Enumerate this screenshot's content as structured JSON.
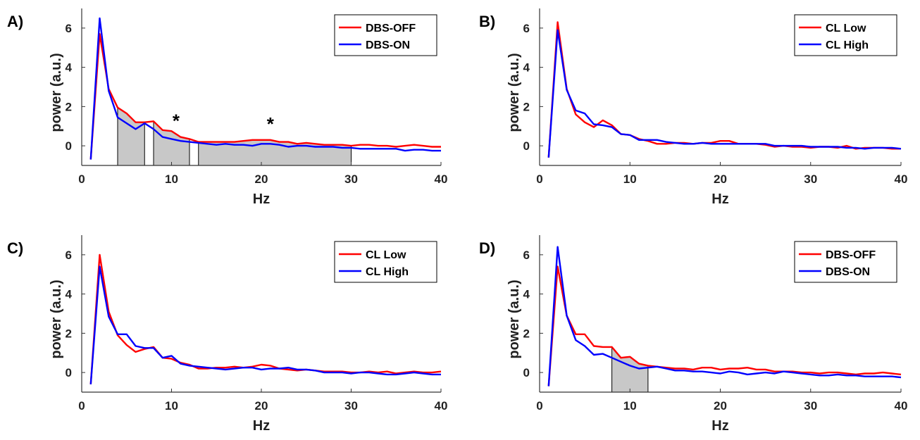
{
  "chart_data": [
    {
      "type": "line",
      "panel_label": "A)",
      "xlabel": "Hz",
      "ylabel": "power (a.u.)",
      "xlim": [
        0,
        40
      ],
      "ylim": [
        -1,
        7
      ],
      "xticks": [
        "0",
        "10",
        "20",
        "30",
        "40"
      ],
      "yticks": [
        "0",
        "2",
        "4",
        "6"
      ],
      "grid": false,
      "legend_position": "top-right",
      "x": [
        1,
        2,
        3,
        4,
        5,
        6,
        7,
        8,
        9,
        10,
        11,
        12,
        13,
        14,
        15,
        16,
        17,
        18,
        19,
        20,
        21,
        22,
        23,
        24,
        25,
        26,
        27,
        28,
        29,
        30,
        31,
        32,
        33,
        34,
        35,
        36,
        37,
        38,
        39,
        40
      ],
      "series": [
        {
          "name": "DBS-OFF",
          "color": "#ff0000",
          "values": [
            -0.7,
            5.7,
            2.9,
            1.95,
            1.65,
            1.2,
            1.2,
            1.25,
            0.8,
            0.75,
            0.45,
            0.35,
            0.2,
            0.2,
            0.2,
            0.2,
            0.2,
            0.25,
            0.3,
            0.3,
            0.3,
            0.2,
            0.2,
            0.1,
            0.15,
            0.1,
            0.05,
            0.05,
            0.05,
            0.0,
            0.05,
            0.05,
            0.0,
            0.0,
            -0.05,
            0.0,
            0.05,
            0.0,
            -0.05,
            -0.05
          ]
        },
        {
          "name": "DBS-ON",
          "color": "#0000ff",
          "values": [
            -0.7,
            6.5,
            2.8,
            1.45,
            1.15,
            0.85,
            1.15,
            0.85,
            0.45,
            0.35,
            0.25,
            0.2,
            0.15,
            0.1,
            0.05,
            0.1,
            0.05,
            0.05,
            0.0,
            0.1,
            0.1,
            0.05,
            -0.05,
            0.0,
            0.0,
            -0.05,
            -0.05,
            -0.05,
            -0.1,
            -0.1,
            -0.15,
            -0.15,
            -0.15,
            -0.15,
            -0.15,
            -0.25,
            -0.2,
            -0.2,
            -0.25,
            -0.25
          ]
        }
      ],
      "shaded_ranges": [
        [
          4,
          7
        ],
        [
          8,
          12
        ],
        [
          13,
          30
        ]
      ],
      "annotations": [
        {
          "text": "*",
          "x": 10.5
        },
        {
          "text": "*",
          "x": 21
        }
      ]
    },
    {
      "type": "line",
      "panel_label": "B)",
      "xlabel": "Hz",
      "ylabel": "power (a.u.)",
      "xlim": [
        0,
        40
      ],
      "ylim": [
        -1,
        7
      ],
      "xticks": [
        "0",
        "10",
        "20",
        "30",
        "40"
      ],
      "yticks": [
        "0",
        "2",
        "4",
        "6"
      ],
      "grid": false,
      "legend_position": "top-right",
      "x": [
        1,
        2,
        3,
        4,
        5,
        6,
        7,
        8,
        9,
        10,
        11,
        12,
        13,
        14,
        15,
        16,
        17,
        18,
        19,
        20,
        21,
        22,
        23,
        24,
        25,
        26,
        27,
        28,
        29,
        30,
        31,
        32,
        33,
        34,
        35,
        36,
        37,
        38,
        39,
        40
      ],
      "series": [
        {
          "name": "CL Low",
          "color": "#ff0000",
          "values": [
            -0.6,
            6.3,
            2.9,
            1.6,
            1.2,
            0.95,
            1.3,
            1.05,
            0.6,
            0.55,
            0.35,
            0.25,
            0.1,
            0.1,
            0.15,
            0.15,
            0.1,
            0.15,
            0.15,
            0.25,
            0.25,
            0.1,
            0.1,
            0.1,
            0.05,
            -0.05,
            0.0,
            -0.05,
            -0.05,
            -0.1,
            -0.05,
            -0.05,
            -0.1,
            0.0,
            -0.15,
            -0.1,
            -0.1,
            -0.1,
            -0.15,
            -0.15
          ]
        },
        {
          "name": "CL High",
          "color": "#0000ff",
          "values": [
            -0.6,
            5.9,
            2.85,
            1.8,
            1.65,
            1.1,
            1.05,
            0.95,
            0.6,
            0.55,
            0.3,
            0.3,
            0.3,
            0.2,
            0.15,
            0.1,
            0.1,
            0.15,
            0.1,
            0.1,
            0.1,
            0.1,
            0.1,
            0.1,
            0.1,
            0.0,
            0.0,
            0.0,
            0.0,
            -0.05,
            -0.05,
            -0.05,
            -0.05,
            -0.1,
            -0.1,
            -0.15,
            -0.1,
            -0.1,
            -0.1,
            -0.15
          ]
        }
      ],
      "shaded_ranges": [],
      "annotations": []
    },
    {
      "type": "line",
      "panel_label": "C)",
      "xlabel": "Hz",
      "ylabel": "power (a.u.)",
      "xlim": [
        0,
        40
      ],
      "ylim": [
        -1,
        7
      ],
      "xticks": [
        "0",
        "10",
        "20",
        "30",
        "40"
      ],
      "yticks": [
        "0",
        "2",
        "4",
        "6"
      ],
      "grid": false,
      "legend_position": "top-right",
      "x": [
        1,
        2,
        3,
        4,
        5,
        6,
        7,
        8,
        9,
        10,
        11,
        12,
        13,
        14,
        15,
        16,
        17,
        18,
        19,
        20,
        21,
        22,
        23,
        24,
        25,
        26,
        27,
        28,
        29,
        30,
        31,
        32,
        33,
        34,
        35,
        36,
        37,
        38,
        39,
        40
      ],
      "series": [
        {
          "name": "CL Low",
          "color": "#ff0000",
          "values": [
            -0.6,
            6.0,
            3.1,
            1.9,
            1.4,
            1.05,
            1.2,
            1.3,
            0.75,
            0.7,
            0.5,
            0.4,
            0.2,
            0.2,
            0.25,
            0.25,
            0.3,
            0.25,
            0.3,
            0.4,
            0.35,
            0.2,
            0.15,
            0.1,
            0.15,
            0.1,
            0.05,
            0.05,
            0.05,
            0.0,
            0.0,
            0.05,
            0.0,
            0.05,
            -0.05,
            0.0,
            0.05,
            0.0,
            0.0,
            0.05
          ]
        },
        {
          "name": "CL High",
          "color": "#0000ff",
          "values": [
            -0.6,
            5.4,
            2.85,
            1.95,
            1.95,
            1.35,
            1.25,
            1.25,
            0.75,
            0.85,
            0.45,
            0.35,
            0.3,
            0.25,
            0.2,
            0.15,
            0.2,
            0.25,
            0.25,
            0.15,
            0.2,
            0.2,
            0.25,
            0.15,
            0.15,
            0.1,
            0.0,
            0.0,
            0.0,
            -0.05,
            0.0,
            0.0,
            -0.05,
            -0.1,
            -0.1,
            -0.05,
            0.0,
            -0.05,
            -0.1,
            -0.1
          ]
        }
      ],
      "shaded_ranges": [],
      "annotations": []
    },
    {
      "type": "line",
      "panel_label": "D)",
      "xlabel": "Hz",
      "ylabel": "power (a.u.)",
      "xlim": [
        0,
        40
      ],
      "ylim": [
        -1,
        7
      ],
      "xticks": [
        "0",
        "10",
        "20",
        "30",
        "40"
      ],
      "yticks": [
        "0",
        "2",
        "4",
        "6"
      ],
      "grid": false,
      "legend_position": "top-right",
      "x": [
        1,
        2,
        3,
        4,
        5,
        6,
        7,
        8,
        9,
        10,
        11,
        12,
        13,
        14,
        15,
        16,
        17,
        18,
        19,
        20,
        21,
        22,
        23,
        24,
        25,
        26,
        27,
        28,
        29,
        30,
        31,
        32,
        33,
        34,
        35,
        36,
        37,
        38,
        39,
        40
      ],
      "series": [
        {
          "name": "DBS-OFF",
          "color": "#ff0000",
          "values": [
            -0.7,
            5.4,
            2.9,
            1.95,
            1.95,
            1.35,
            1.3,
            1.3,
            0.75,
            0.8,
            0.45,
            0.35,
            0.3,
            0.25,
            0.2,
            0.2,
            0.15,
            0.25,
            0.25,
            0.15,
            0.2,
            0.2,
            0.25,
            0.15,
            0.15,
            0.05,
            0.05,
            0.05,
            0.0,
            0.0,
            -0.05,
            0.0,
            0.0,
            -0.05,
            -0.1,
            -0.05,
            -0.05,
            0.0,
            -0.05,
            -0.1
          ]
        },
        {
          "name": "DBS-ON",
          "color": "#0000ff",
          "values": [
            -0.7,
            6.4,
            2.9,
            1.65,
            1.35,
            0.9,
            0.95,
            0.75,
            0.55,
            0.35,
            0.2,
            0.25,
            0.3,
            0.2,
            0.1,
            0.1,
            0.05,
            0.05,
            0.0,
            -0.05,
            0.05,
            0.0,
            -0.1,
            -0.05,
            0.0,
            -0.05,
            0.05,
            0.0,
            -0.05,
            -0.1,
            -0.15,
            -0.15,
            -0.1,
            -0.15,
            -0.15,
            -0.2,
            -0.2,
            -0.2,
            -0.2,
            -0.25
          ]
        }
      ],
      "shaded_ranges": [
        [
          8,
          12
        ]
      ],
      "annotations": []
    }
  ]
}
